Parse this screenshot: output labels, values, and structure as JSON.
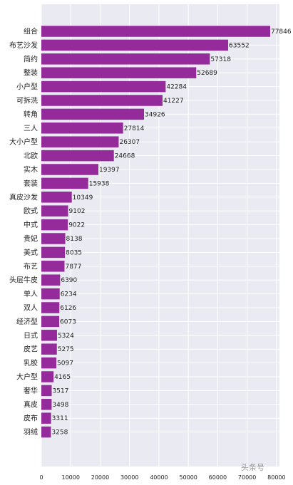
{
  "chart_data": {
    "type": "bar",
    "orientation": "horizontal",
    "title": "",
    "xlabel": "",
    "ylabel": "",
    "categories": [
      "组合",
      "布艺沙发",
      "简约",
      "整装",
      "小户型",
      "可拆洗",
      "转角",
      "三人",
      "大小户型",
      "北欧",
      "实木",
      "套装",
      "真皮沙发",
      "欧式",
      "中式",
      "贵妃",
      "美式",
      "布艺",
      "头层牛皮",
      "单人",
      "双人",
      "经济型",
      "日式",
      "皮艺",
      "乳胶",
      "大户型",
      "奢华",
      "真皮",
      "皮布",
      "羽绒"
    ],
    "values": [
      77846,
      63552,
      57318,
      52689,
      42284,
      41227,
      34926,
      27814,
      26307,
      24668,
      19397,
      15938,
      10349,
      9102,
      9022,
      8138,
      8035,
      7877,
      6390,
      6234,
      6126,
      6073,
      5324,
      5275,
      5097,
      4165,
      3517,
      3498,
      3311,
      3258
    ],
    "xticks": [
      0,
      10000,
      20000,
      30000,
      40000,
      50000,
      60000,
      70000,
      80000
    ],
    "xlim": [
      0,
      81000
    ],
    "bar_color": "#952a9a",
    "background_color": "#eaeaf2",
    "grid": true,
    "legend": "none"
  },
  "watermark": "头条号"
}
